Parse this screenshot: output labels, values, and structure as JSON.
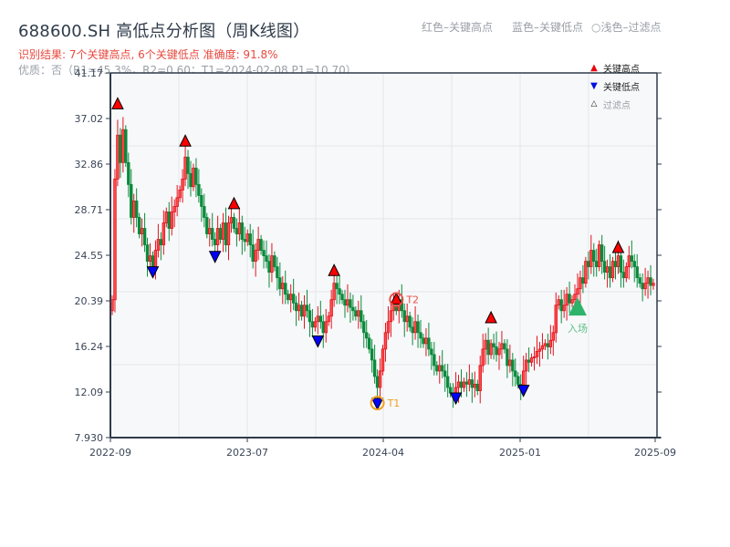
{
  "header": {
    "title": "688600.SH 高低点分析图（周K线图）",
    "result_line": "识别结果: 7个关键高点, 6个关键低点  准确度: 91.8%",
    "quality_line": "优质：否（R1=45.3%，R2=0.60；T1=2024-02-08 P1=10.70）"
  },
  "top_legend": {
    "red": "红色–关键高点",
    "blue": "蓝色–关键低点",
    "faded": "○浅色–过滤点"
  },
  "legend": {
    "items": [
      {
        "label": "关键高点",
        "marker": "▲",
        "color": "#e8000b"
      },
      {
        "label": "关键低点",
        "marker": "▼",
        "color": "#0010e0"
      },
      {
        "label": "过滤点",
        "marker": "△",
        "color": "#f4b8b8"
      }
    ]
  },
  "colors": {
    "up": "#e0141e",
    "down": "#0b8a3c",
    "high_marker": "#ff0000",
    "low_marker": "#0000ff",
    "t1_ring": "#f0a020",
    "t2_ring": "#e8524a",
    "entry": "#2db36a",
    "plot_bg": "#f7f8fa",
    "grid": "#e3e6ea",
    "axis": "#2f3b4a"
  },
  "chart_data": {
    "type": "candlestick",
    "title": "688600.SH 高低点分析图（周K线图）",
    "xlabel": "",
    "ylabel": "",
    "ylim": [
      7.93,
      41.17
    ],
    "y_ticks": [
      "7.930",
      "12.09",
      "16.24",
      "20.39",
      "24.55",
      "28.71",
      "32.86",
      "37.02",
      "41.17"
    ],
    "x_ticks": [
      "2022-09",
      "2023-07",
      "2024-04",
      "2025-01",
      "2025-09"
    ],
    "grid": true,
    "legend_position": "upper right",
    "closes": [
      20.5,
      31.5,
      35.5,
      33.0,
      36.0,
      33.0,
      31.0,
      28.0,
      29.5,
      28.0,
      26.5,
      27.0,
      25.5,
      24.0,
      24.5,
      23.5,
      25.0,
      26.0,
      25.5,
      27.5,
      28.5,
      27.0,
      28.5,
      29.0,
      29.8,
      30.5,
      31.5,
      33.5,
      32.0,
      30.8,
      32.5,
      31.0,
      30.0,
      29.0,
      28.0,
      26.5,
      27.0,
      26.0,
      25.5,
      27.0,
      26.0,
      27.5,
      25.5,
      27.5,
      28.0,
      27.0,
      26.5,
      27.5,
      26.0,
      25.8,
      26.5,
      25.5,
      24.0,
      25.0,
      26.0,
      25.0,
      24.5,
      24.0,
      23.0,
      24.5,
      23.5,
      22.5,
      21.5,
      22.0,
      21.0,
      20.5,
      21.0,
      20.2,
      19.5,
      20.0,
      19.0,
      20.0,
      19.5,
      18.5,
      18.0,
      18.5,
      19.0,
      18.5,
      17.5,
      18.5,
      19.0,
      20.5,
      22.0,
      21.5,
      21.0,
      20.5,
      20.0,
      20.5,
      19.8,
      19.5,
      19.0,
      19.5,
      18.5,
      17.5,
      17.0,
      16.0,
      15.0,
      13.5,
      12.5,
      14.0,
      16.0,
      17.5,
      18.5,
      19.5,
      20.0,
      19.5,
      20.5,
      19.5,
      18.5,
      19.0,
      18.0,
      17.5,
      18.5,
      17.5,
      17.0,
      16.5,
      17.0,
      16.0,
      15.5,
      14.5,
      14.0,
      14.5,
      14.0,
      13.5,
      12.5,
      12.0,
      11.8,
      12.5,
      13.0,
      12.5,
      13.0,
      12.8,
      13.2,
      12.5,
      12.8,
      12.2,
      14.5,
      16.0,
      16.8,
      15.5,
      16.5,
      16.2,
      15.5,
      16.0,
      16.5,
      16.0,
      14.5,
      15.0,
      14.0,
      13.5,
      12.8,
      12.5,
      14.0,
      15.0,
      14.8,
      15.2,
      15.3,
      15.8,
      16.0,
      16.3,
      16.5,
      16.2,
      16.8,
      17.5,
      20.0,
      20.5,
      19.5,
      20.0,
      21.0,
      20.2,
      20.5,
      21.0,
      21.5,
      22.5,
      22.0,
      24.0,
      23.5,
      25.0,
      24.0,
      23.5,
      25.5,
      24.0,
      23.0,
      23.5,
      22.5,
      24.0,
      23.5,
      24.5,
      23.0,
      22.5,
      23.5,
      24.5,
      24.0,
      23.5,
      22.5,
      22.0,
      21.5,
      22.0,
      22.5,
      21.8,
      22.0
    ],
    "key_highs": [
      {
        "index": 2,
        "price": 38.4
      },
      {
        "index": 27,
        "price": 35.0
      },
      {
        "index": 45,
        "price": 29.3
      },
      {
        "index": 82,
        "price": 23.2
      },
      {
        "index": 105,
        "price": 20.6,
        "tag": "T2"
      },
      {
        "index": 140,
        "price": 18.9
      },
      {
        "index": 187,
        "price": 25.3
      }
    ],
    "key_lows": [
      {
        "index": 15,
        "price": 23.0
      },
      {
        "index": 38,
        "price": 24.4
      },
      {
        "index": 76,
        "price": 16.7
      },
      {
        "index": 98,
        "price": 11.0,
        "tag": "T1",
        "date": "2024-02-08",
        "value": 10.7
      },
      {
        "index": 127,
        "price": 11.5
      },
      {
        "index": 152,
        "price": 12.2
      }
    ],
    "entry_signal": {
      "index": 172,
      "price": 19.8,
      "label": "入场"
    },
    "annotations": [
      "T1",
      "T2",
      "入场"
    ]
  }
}
